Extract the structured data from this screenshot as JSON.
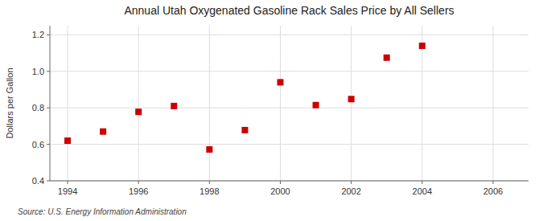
{
  "chart_data": {
    "type": "scatter",
    "title": "Annual Utah Oxygenated Gasoline Rack Sales Price by All Sellers",
    "ylabel": "Dollars per Gallon",
    "annotations": [
      "Source: U.S. Energy Information Administration"
    ],
    "x": [
      1994,
      1995,
      1996,
      1997,
      1998,
      1999,
      2000,
      2001,
      2002,
      2003,
      2004
    ],
    "values": [
      0.62,
      0.67,
      0.778,
      0.81,
      0.572,
      0.678,
      0.94,
      0.815,
      0.848,
      1.075,
      1.14
    ],
    "color": "#cc0000",
    "marker": "square",
    "xlim": [
      1993.5,
      2007
    ],
    "ylim": [
      0.4,
      1.25
    ],
    "xticks": [
      1994,
      1996,
      1998,
      2000,
      2002,
      2004,
      2006
    ],
    "yticks": [
      0.4,
      0.6,
      0.8,
      {
        "value": 1.0,
        "label": "1.0"
      },
      1.2
    ],
    "grid": true
  }
}
